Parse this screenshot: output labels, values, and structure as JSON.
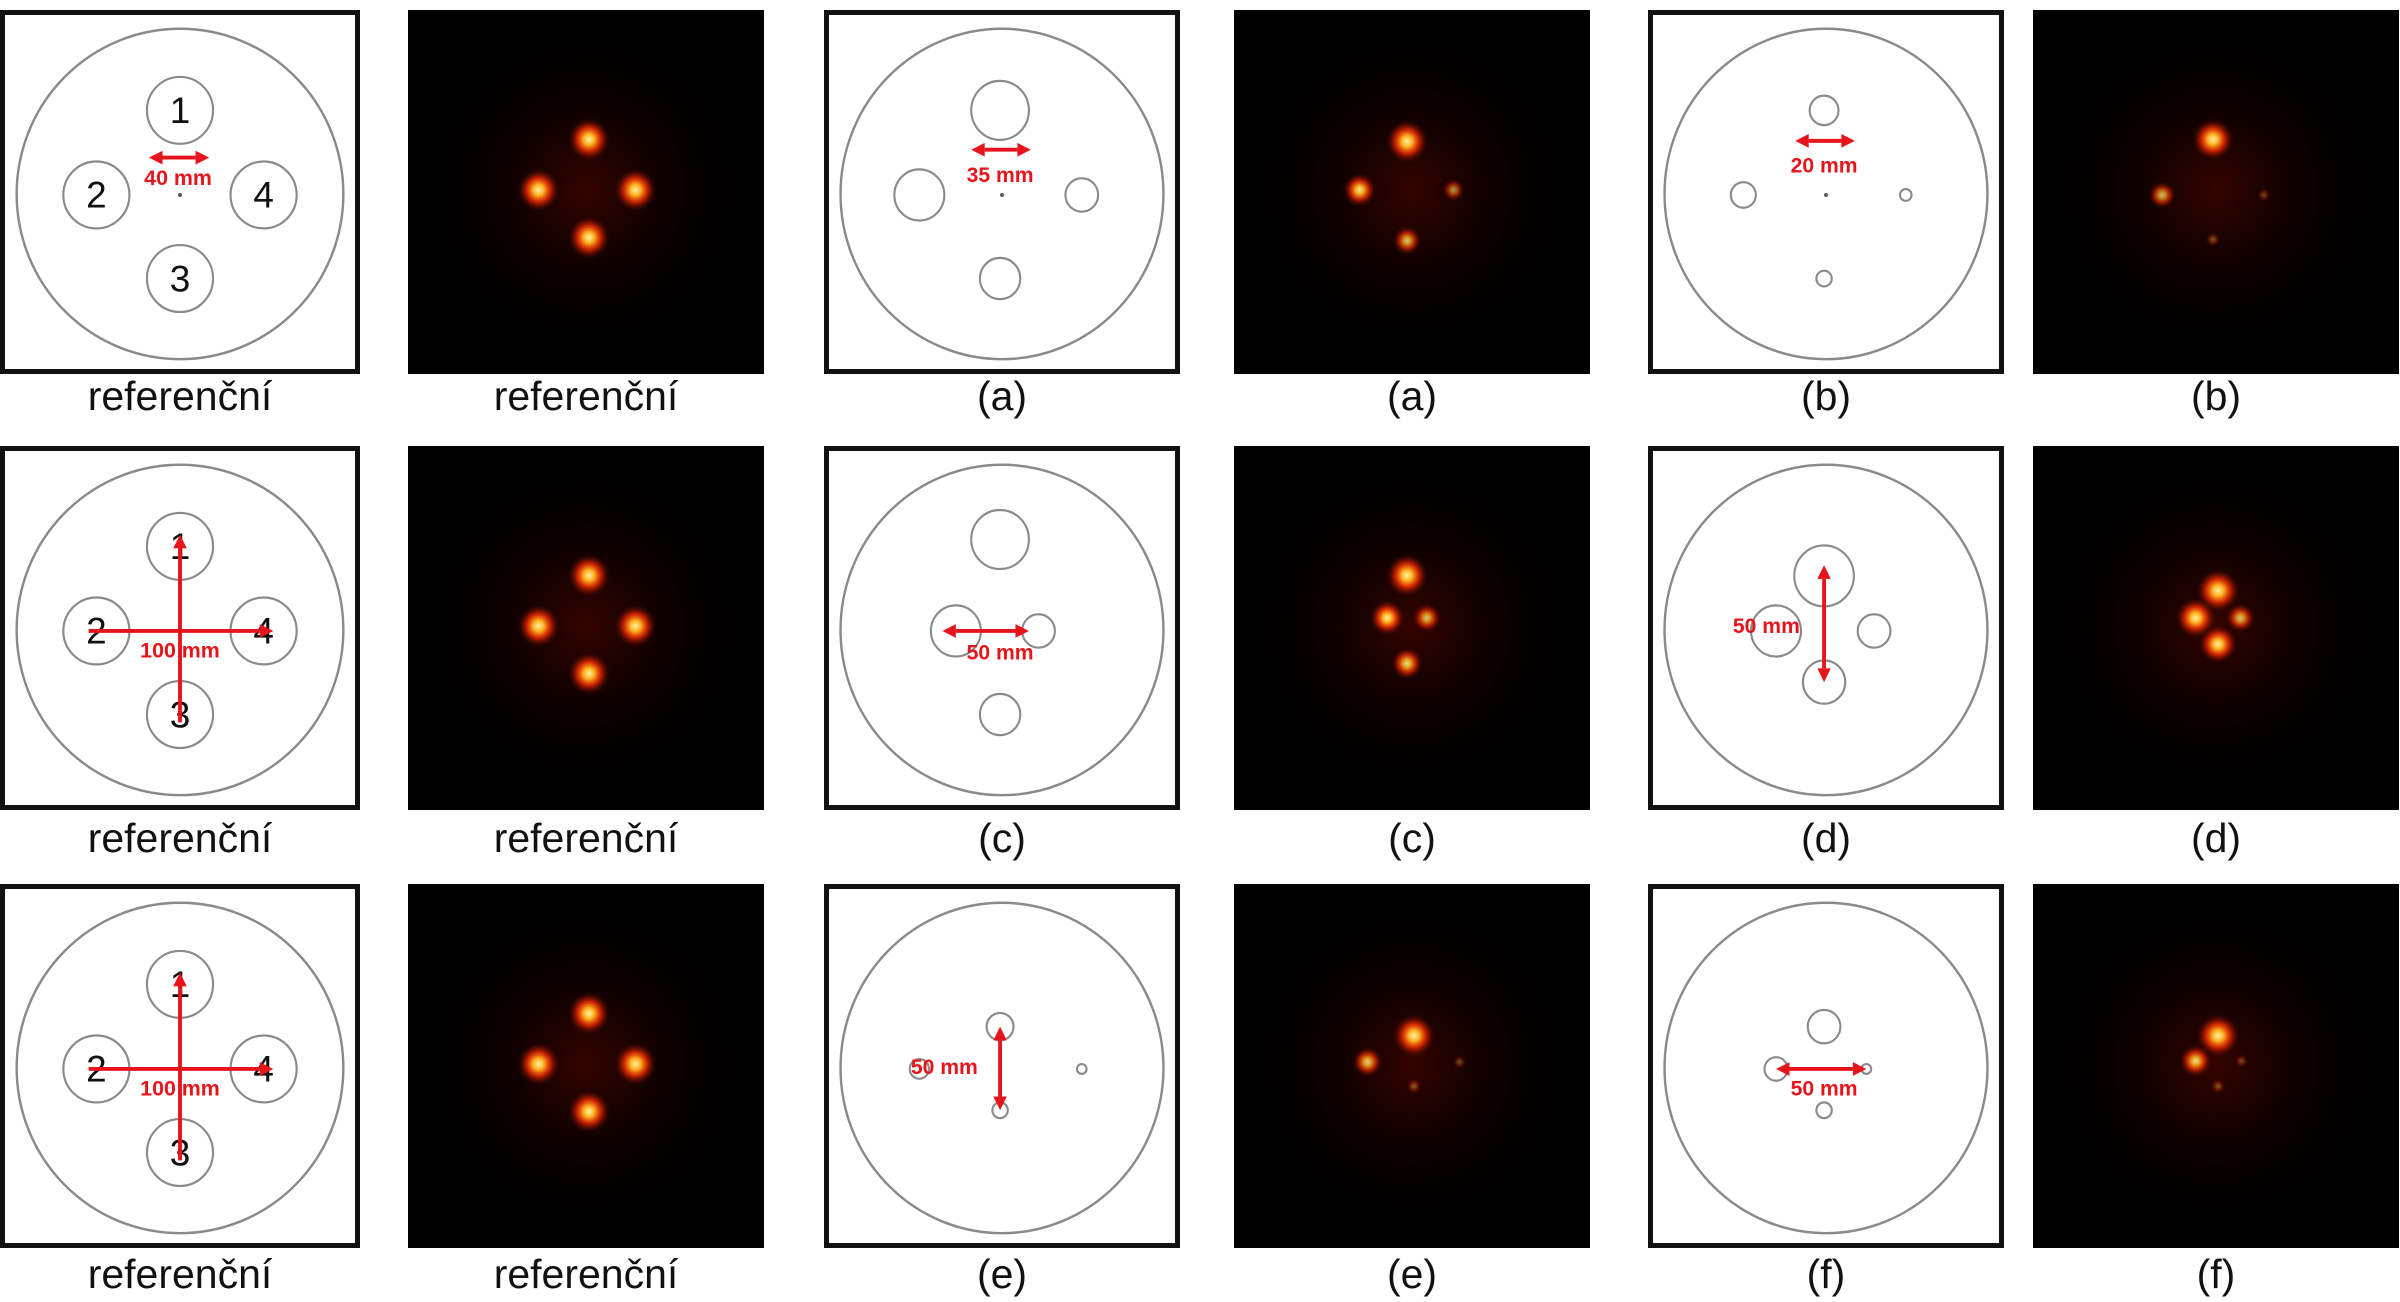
{
  "colors": {
    "annotation": "#e8141b",
    "circle_stroke": "#8a8a8a",
    "image_background": "#000000",
    "spot_core": "#fff2a8",
    "spot_glow": "#ff2a00"
  },
  "rows": [
    {
      "panels": [
        {
          "kind": "phantom",
          "caption": "referenční",
          "numbers": [
            "1",
            "2",
            "3",
            "4"
          ],
          "label": "40 mm"
        },
        {
          "kind": "image",
          "caption": "referenční",
          "spot_intensity": [
            1.0,
            1.0,
            1.0,
            1.0
          ]
        },
        {
          "kind": "phantom",
          "caption": "(a)",
          "label": "35 mm"
        },
        {
          "kind": "image",
          "caption": "(a)",
          "spot_intensity": [
            1.0,
            0.7,
            0.55,
            0.35
          ]
        },
        {
          "kind": "phantom",
          "caption": "(b)",
          "label": "20 mm"
        },
        {
          "kind": "image",
          "caption": "(b)",
          "spot_intensity": [
            0.95,
            0.5,
            0.1,
            0.05
          ]
        }
      ]
    },
    {
      "panels": [
        {
          "kind": "phantom",
          "caption": "referenční",
          "numbers": [
            "1",
            "2",
            "3",
            "4"
          ],
          "label": "100 mm"
        },
        {
          "kind": "image",
          "caption": "referenční",
          "spot_intensity": [
            1.0,
            1.0,
            1.0,
            1.0
          ]
        },
        {
          "kind": "phantom",
          "caption": "(c)",
          "label": "50 mm"
        },
        {
          "kind": "image",
          "caption": "(c)",
          "spot_intensity": [
            1.0,
            0.75,
            0.65,
            0.55
          ]
        },
        {
          "kind": "phantom",
          "caption": "(d)",
          "label": "50 mm"
        },
        {
          "kind": "image",
          "caption": "(d)",
          "spot_intensity": [
            1.0,
            0.9,
            0.85,
            0.55
          ]
        }
      ]
    },
    {
      "panels": [
        {
          "kind": "phantom",
          "caption": "referenční",
          "numbers": [
            "1",
            "2",
            "3",
            "4"
          ],
          "label": "100 mm"
        },
        {
          "kind": "image",
          "caption": "referenční",
          "spot_intensity": [
            1.0,
            1.0,
            1.0,
            1.0
          ]
        },
        {
          "kind": "phantom",
          "caption": "(e)",
          "label": "50 mm"
        },
        {
          "kind": "image",
          "caption": "(e)",
          "spot_intensity": [
            1.0,
            0.6,
            0.12,
            0.06
          ]
        },
        {
          "kind": "phantom",
          "caption": "(f)",
          "label": "50 mm"
        },
        {
          "kind": "image",
          "caption": "(f)",
          "spot_intensity": [
            1.0,
            0.65,
            0.1,
            0.06
          ]
        }
      ]
    }
  ]
}
